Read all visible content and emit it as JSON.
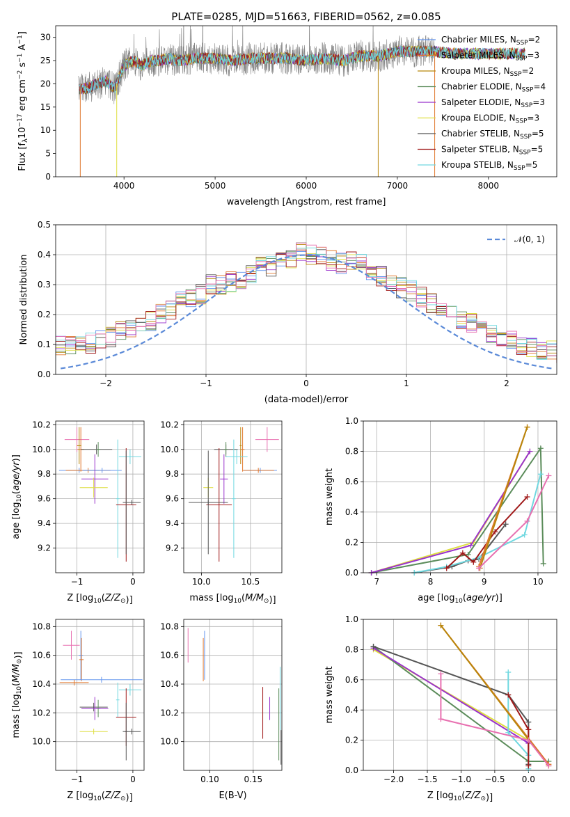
{
  "colors": {
    "chabrier_miles": "#6495ed",
    "salpeter_miles": "#e0782e",
    "kroupa_miles": "#b8860b",
    "chabrier_elodie": "#5b8c5a",
    "salpeter_elodie": "#9932cc",
    "kroupa_elodie": "#dede40",
    "chabrier_stelib": "#555555",
    "salpeter_stelib": "#a01818",
    "kroupa_stelib": "#70d8e0",
    "pink": "#e870b0",
    "gauss": "#5b8ad8",
    "data": "#808080",
    "grid": "#b0b0b0"
  },
  "chart_data": [
    {
      "type": "line",
      "title": "PLATE=0285, MJD=51663, FIBERID=0562, z=0.085",
      "xlabel": "wavelength [Angstrom, rest frame]",
      "ylabel": "Flux [f_λ10^-17 erg cm^-2 s^-1 A^-1]",
      "xlim": [
        3250,
        8750
      ],
      "ylim": [
        0,
        32.5
      ],
      "xticks": [
        "4000",
        "5000",
        "6000",
        "7000",
        "8000"
      ],
      "yticks": [
        "0",
        "5",
        "10",
        "15",
        "20",
        "25",
        "30"
      ],
      "grid": false,
      "legend_position": "right",
      "legend": [
        {
          "name": "Chabrier MILES, N_SSP=2",
          "color_key": "chabrier_miles"
        },
        {
          "name": "Salpeter MILES, N_SSP=3",
          "color_key": "salpeter_miles"
        },
        {
          "name": "Kroupa MILES, N_SSP=2",
          "color_key": "kroupa_miles"
        },
        {
          "name": "Chabrier ELODIE, N_SSP=4",
          "color_key": "chabrier_elodie"
        },
        {
          "name": "Salpeter ELODIE, N_SSP=3",
          "color_key": "salpeter_elodie"
        },
        {
          "name": "Kroupa ELODIE, N_SSP=3",
          "color_key": "kroupa_elodie"
        },
        {
          "name": "Chabrier STELIB, N_SSP=5",
          "color_key": "chabrier_stelib"
        },
        {
          "name": "Salpeter STELIB, N_SSP=5",
          "color_key": "salpeter_stelib"
        },
        {
          "name": "Kroupa STELIB, N_SSP=5",
          "color_key": "kroupa_stelib"
        }
      ],
      "continuum": {
        "x": [
          3500,
          3600,
          3700,
          3800,
          3900,
          4000,
          4100,
          4200,
          4300,
          4400,
          4500,
          4600,
          4800,
          5000,
          5200,
          5400,
          5600,
          5800,
          6000,
          6200,
          6400,
          6600,
          6800,
          7000,
          7200,
          7400,
          7600,
          7800,
          8000,
          8200,
          8400
        ],
        "y": [
          19,
          19,
          20,
          20.5,
          19,
          24,
          25,
          24,
          25,
          25,
          25.5,
          25,
          25.5,
          25.5,
          25,
          25.5,
          25.5,
          25.5,
          25,
          25.5,
          25,
          26,
          26,
          27,
          27,
          27,
          26.5,
          26.5,
          26.5,
          26.5,
          26.5
        ]
      }
    },
    {
      "type": "bar",
      "xlabel": "(data-model)/error",
      "ylabel": "Normed distribution",
      "xlim": [
        -2.5,
        2.5
      ],
      "ylim": [
        0,
        0.5
      ],
      "xticks": [
        "−2",
        "−1",
        "0",
        "1",
        "2"
      ],
      "yticks": [
        "0.0",
        "0.1",
        "0.2",
        "0.3",
        "0.4",
        "0.5"
      ],
      "grid": true,
      "legend_position": "top-right",
      "legend": [
        "𝒩(0, 1)"
      ],
      "bin_width": 0.1,
      "mean_histogram": [
        0.05,
        0.055,
        0.06,
        0.075,
        0.08,
        0.095,
        0.1,
        0.1,
        0.105,
        0.115,
        0.125,
        0.145,
        0.155,
        0.16,
        0.18,
        0.2,
        0.22,
        0.25,
        0.25,
        0.27,
        0.3,
        0.3,
        0.31,
        0.32,
        0.34,
        0.36,
        0.36,
        0.39,
        0.39,
        0.41,
        0.4,
        0.4,
        0.38,
        0.37,
        0.38,
        0.37,
        0.35,
        0.33,
        0.31,
        0.29,
        0.28,
        0.26,
        0.24,
        0.22,
        0.2,
        0.18,
        0.17,
        0.15,
        0.14,
        0.12,
        0.12,
        0.1,
        0.09,
        0.08,
        0.08,
        0.07,
        0.06,
        0.05,
        0.04,
        0.04
      ],
      "series_offsets": [
        {
          "name": "Chabrier MILES",
          "color_key": "chabrier_miles",
          "seed": 3
        },
        {
          "name": "Salpeter MILES",
          "color_key": "salpeter_miles",
          "seed": 7
        },
        {
          "name": "Kroupa MILES",
          "color_key": "kroupa_miles",
          "seed": 11
        },
        {
          "name": "Chabrier ELODIE",
          "color_key": "chabrier_elodie",
          "seed": 13
        },
        {
          "name": "Salpeter ELODIE",
          "color_key": "salpeter_elodie",
          "seed": 17
        },
        {
          "name": "Kroupa ELODIE",
          "color_key": "kroupa_elodie",
          "seed": 19
        },
        {
          "name": "Chabrier STELIB",
          "color_key": "chabrier_stelib",
          "seed": 23
        },
        {
          "name": "Salpeter STELIB",
          "color_key": "salpeter_stelib",
          "seed": 29
        },
        {
          "name": "Kroupa STELIB",
          "color_key": "kroupa_stelib",
          "seed": 31
        },
        {
          "name": "pink",
          "color_key": "pink",
          "seed": 37
        }
      ]
    },
    {
      "type": "scatter",
      "xlabel": "Z [log10(Z/Z⊙)]",
      "ylabel": "age [log10(age/yr)]",
      "xlim": [
        -1.38,
        0.2
      ],
      "ylim": [
        9.0,
        10.23
      ],
      "xticks": [
        "−1",
        "0"
      ],
      "yticks": [
        "9.2",
        "9.4",
        "9.6",
        "9.8",
        "10.0",
        "10.2"
      ],
      "grid": true,
      "points": [
        {
          "x": -1.0,
          "y": 10.08,
          "xe": 0.22,
          "ye": 0.1,
          "color_key": "pink"
        },
        {
          "x": -0.93,
          "y": 10.0,
          "xe": 0.06,
          "ye": 0.18,
          "color_key": "salpeter_miles"
        },
        {
          "x": -0.96,
          "y": 10.03,
          "xe": 0.04,
          "ye": 0.15,
          "color_key": "kroupa_miles"
        },
        {
          "x": -0.96,
          "y": 9.83,
          "xe": 0.36,
          "ye": 0.02,
          "color_key": "chabrier_miles"
        },
        {
          "x": -0.8,
          "y": 9.83,
          "xe": 0.4,
          "ye": 0.02,
          "color_key": "salpeter_miles"
        },
        {
          "x": -0.55,
          "y": 9.83,
          "xe": 0.35,
          "ye": 0.02,
          "color_key": "chabrier_miles"
        },
        {
          "x": -0.65,
          "y": 10.0,
          "xe": 0.28,
          "ye": 0.04,
          "color_key": "chabrier_stelib"
        },
        {
          "x": -0.62,
          "y": 10.0,
          "xe": 0.04,
          "ye": 0.06,
          "color_key": "chabrier_elodie"
        },
        {
          "x": -0.68,
          "y": 9.76,
          "xe": 0.24,
          "ye": 0.2,
          "color_key": "salpeter_elodie"
        },
        {
          "x": -0.7,
          "y": 9.69,
          "xe": 0.25,
          "ye": 0.08,
          "color_key": "kroupa_elodie"
        },
        {
          "x": -0.27,
          "y": 9.6,
          "xe": 0.03,
          "ye": 0.48,
          "color_key": "kroupa_stelib"
        },
        {
          "x": -0.05,
          "y": 9.94,
          "xe": 0.2,
          "ye": 0.06,
          "color_key": "kroupa_stelib"
        },
        {
          "x": -0.12,
          "y": 9.55,
          "xe": 0.18,
          "ye": 0.46,
          "color_key": "salpeter_stelib"
        },
        {
          "x": -0.02,
          "y": 9.57,
          "xe": 0.16,
          "ye": 0.02,
          "color_key": "chabrier_stelib"
        },
        {
          "x": -0.12,
          "y": 9.57,
          "xe": 0.05,
          "ye": 0.42,
          "color_key": "chabrier_stelib"
        }
      ]
    },
    {
      "type": "scatter",
      "xlabel": "mass [log10(M/M⊙)]",
      "ylabel": "",
      "xlim": [
        9.82,
        10.82
      ],
      "ylim": [
        9.0,
        10.23
      ],
      "xticks": [
        "10.0",
        "10.5"
      ],
      "yticks": [
        "9.2",
        "9.4",
        "9.6",
        "9.8",
        "10.0",
        "10.2"
      ],
      "grid": true,
      "points": [
        {
          "x": 10.67,
          "y": 10.08,
          "xe": 0.12,
          "ye": 0.1,
          "color_key": "pink"
        },
        {
          "x": 10.42,
          "y": 10.0,
          "xe": 0.02,
          "ye": 0.18,
          "color_key": "salpeter_miles"
        },
        {
          "x": 10.4,
          "y": 10.03,
          "xe": 0.01,
          "ye": 0.15,
          "color_key": "kroupa_miles"
        },
        {
          "x": 10.6,
          "y": 9.83,
          "xe": 0.17,
          "ye": 0.02,
          "color_key": "chabrier_miles"
        },
        {
          "x": 10.58,
          "y": 9.83,
          "xe": 0.16,
          "ye": 0.02,
          "color_key": "salpeter_miles"
        },
        {
          "x": 10.25,
          "y": 10.0,
          "xe": 0.12,
          "ye": 0.04,
          "color_key": "chabrier_stelib"
        },
        {
          "x": 10.25,
          "y": 10.0,
          "xe": 0.02,
          "ye": 0.06,
          "color_key": "chabrier_elodie"
        },
        {
          "x": 10.23,
          "y": 9.76,
          "xe": 0.04,
          "ye": 0.2,
          "color_key": "salpeter_elodie"
        },
        {
          "x": 10.07,
          "y": 9.69,
          "xe": 0.05,
          "ye": 0.08,
          "color_key": "kroupa_elodie"
        },
        {
          "x": 10.36,
          "y": 9.94,
          "xe": 0.11,
          "ye": 0.06,
          "color_key": "kroupa_stelib"
        },
        {
          "x": 10.33,
          "y": 9.6,
          "xe": 0.02,
          "ye": 0.48,
          "color_key": "kroupa_stelib"
        },
        {
          "x": 10.18,
          "y": 9.55,
          "xe": 0.13,
          "ye": 0.46,
          "color_key": "salpeter_stelib"
        },
        {
          "x": 10.07,
          "y": 9.57,
          "xe": 0.2,
          "ye": 0.02,
          "color_key": "chabrier_stelib"
        },
        {
          "x": 10.07,
          "y": 9.57,
          "xe": 0.02,
          "ye": 0.42,
          "color_key": "chabrier_stelib"
        }
      ]
    },
    {
      "type": "line",
      "xlabel": "age [log10(age/yr)]",
      "ylabel": "mass weight",
      "xlim": [
        6.75,
        10.35
      ],
      "ylim": [
        0,
        1
      ],
      "xticks": [
        "7",
        "8",
        "9",
        "10"
      ],
      "yticks": [
        "0.0",
        "0.2",
        "0.4",
        "0.6",
        "0.8",
        "1.0"
      ],
      "grid": true,
      "series": [
        {
          "color_key": "kroupa_elodie",
          "x": [
            6.9,
            8.8,
            9.85
          ],
          "y": [
            0.0,
            0.2,
            0.8
          ]
        },
        {
          "color_key": "chabrier_elodie",
          "x": [
            6.9,
            8.7,
            10.05,
            10.1
          ],
          "y": [
            0.0,
            0.12,
            0.82,
            0.06
          ]
        },
        {
          "color_key": "salpeter_elodie",
          "x": [
            6.9,
            8.75,
            9.85
          ],
          "y": [
            0.0,
            0.18,
            0.8
          ]
        },
        {
          "color_key": "chabrier_stelib",
          "x": [
            7.7,
            8.4,
            8.7,
            8.9,
            9.4
          ],
          "y": [
            0.0,
            0.04,
            0.08,
            0.09,
            0.32
          ]
        },
        {
          "color_key": "kroupa_stelib",
          "x": [
            7.7,
            8.3,
            8.9,
            9.75,
            10.05
          ],
          "y": [
            0.0,
            0.04,
            0.1,
            0.25,
            0.65
          ]
        },
        {
          "color_key": "salpeter_stelib",
          "x": [
            8.3,
            8.6,
            8.8,
            9.2,
            9.8
          ],
          "y": [
            0.03,
            0.13,
            0.07,
            0.27,
            0.5
          ]
        },
        {
          "color_key": "salpeter_miles",
          "x": [
            8.9,
            9.8
          ],
          "y": [
            0.04,
            0.96
          ]
        },
        {
          "color_key": "kroupa_miles",
          "x": [
            8.92,
            9.8
          ],
          "y": [
            0.03,
            0.96
          ]
        },
        {
          "color_key": "pink",
          "x": [
            8.9,
            9.8,
            10.2
          ],
          "y": [
            0.03,
            0.34,
            0.64
          ]
        }
      ]
    },
    {
      "type": "scatter",
      "xlabel": "Z [log10(Z/Z⊙)]",
      "ylabel": "mass [log10(M/M⊙)]",
      "xlim": [
        -1.38,
        0.2
      ],
      "ylim": [
        9.8,
        10.85
      ],
      "xticks": [
        "−1",
        "0"
      ],
      "yticks": [
        "10.0",
        "10.2",
        "10.4",
        "10.6",
        "10.8"
      ],
      "grid": true,
      "points": [
        {
          "x": -1.1,
          "y": 10.67,
          "xe": 0.15,
          "ye": 0.1,
          "color_key": "pink"
        },
        {
          "x": -0.93,
          "y": 10.6,
          "xe": 0.04,
          "ye": 0.17,
          "color_key": "chabrier_miles"
        },
        {
          "x": -0.92,
          "y": 10.57,
          "xe": 0.04,
          "ye": 0.15,
          "color_key": "salpeter_miles"
        },
        {
          "x": -0.56,
          "y": 10.43,
          "xe": 0.73,
          "ye": 0.02,
          "color_key": "chabrier_miles"
        },
        {
          "x": -1.05,
          "y": 10.41,
          "xe": 0.26,
          "ye": 0.02,
          "color_key": "salpeter_miles"
        },
        {
          "x": -0.7,
          "y": 10.24,
          "xe": 0.25,
          "ye": 0.03,
          "color_key": "chabrier_stelib"
        },
        {
          "x": -0.62,
          "y": 10.23,
          "xe": 0.04,
          "ye": 0.06,
          "color_key": "chabrier_elodie"
        },
        {
          "x": -0.68,
          "y": 10.23,
          "xe": 0.24,
          "ye": 0.08,
          "color_key": "salpeter_elodie"
        },
        {
          "x": -0.7,
          "y": 10.07,
          "xe": 0.25,
          "ye": 0.02,
          "color_key": "kroupa_elodie"
        },
        {
          "x": -0.27,
          "y": 10.29,
          "xe": 0.03,
          "ye": 0.12,
          "color_key": "kroupa_stelib"
        },
        {
          "x": -0.05,
          "y": 10.36,
          "xe": 0.2,
          "ye": 0.04,
          "color_key": "kroupa_stelib"
        },
        {
          "x": -0.12,
          "y": 10.17,
          "xe": 0.18,
          "ye": 0.2,
          "color_key": "salpeter_stelib"
        },
        {
          "x": -0.02,
          "y": 10.07,
          "xe": 0.16,
          "ye": 0.02,
          "color_key": "chabrier_stelib"
        },
        {
          "x": -0.12,
          "y": 10.07,
          "xe": 0.02,
          "ye": 0.2,
          "color_key": "chabrier_stelib"
        }
      ]
    },
    {
      "type": "scatter",
      "xlabel": "E(B-V)",
      "ylabel": "",
      "xlim": [
        0.07,
        0.183
      ],
      "ylim": [
        9.8,
        10.85
      ],
      "xticks": [
        "0.10",
        "0.15"
      ],
      "yticks": [
        "10.0",
        "10.2",
        "10.4",
        "10.6",
        "10.8"
      ],
      "grid": true,
      "points": [
        {
          "x": 0.075,
          "y": 10.67,
          "xe": 0,
          "ye": 0.12,
          "color_key": "pink"
        },
        {
          "x": 0.094,
          "y": 10.6,
          "xe": 0,
          "ye": 0.17,
          "color_key": "chabrier_miles"
        },
        {
          "x": 0.0925,
          "y": 10.57,
          "xe": 0,
          "ye": 0.15,
          "color_key": "salpeter_miles"
        },
        {
          "x": 0.161,
          "y": 10.2,
          "xe": 0,
          "ye": 0.18,
          "color_key": "salpeter_stelib"
        },
        {
          "x": 0.169,
          "y": 10.23,
          "xe": 0,
          "ye": 0.08,
          "color_key": "salpeter_elodie"
        },
        {
          "x": 0.1795,
          "y": 10.12,
          "xe": 0,
          "ye": 0.25,
          "color_key": "chabrier_elodie"
        },
        {
          "x": 0.181,
          "y": 10.3,
          "xe": 0,
          "ye": 0.22,
          "color_key": "kroupa_stelib"
        },
        {
          "x": 0.182,
          "y": 9.96,
          "xe": 0,
          "ye": 0.12,
          "color_key": "chabrier_stelib"
        }
      ]
    },
    {
      "type": "line",
      "xlabel": "Z [log10(Z/Z⊙)]",
      "ylabel": "mass weight",
      "xlim": [
        -2.45,
        0.42
      ],
      "ylim": [
        0,
        1
      ],
      "xticks": [
        "−2.0",
        "−1.5",
        "−1.0",
        "−0.5",
        "0.0"
      ],
      "yticks": [
        "0.0",
        "0.2",
        "0.4",
        "0.6",
        "0.8",
        "1.0"
      ],
      "grid": true,
      "series": [
        {
          "color_key": "kroupa_elodie",
          "x": [
            -2.3,
            0.0
          ],
          "y": [
            0.8,
            0.2
          ]
        },
        {
          "color_key": "chabrier_elodie",
          "x": [
            -2.3,
            0.0,
            0.3
          ],
          "y": [
            0.82,
            0.06,
            0.06
          ]
        },
        {
          "color_key": "salpeter_elodie",
          "x": [
            -2.3,
            0.0
          ],
          "y": [
            0.81,
            0.18
          ]
        },
        {
          "color_key": "chabrier_stelib",
          "x": [
            -2.3,
            -0.3,
            0.0,
            0.0
          ],
          "y": [
            0.82,
            0.5,
            0.32,
            0.04
          ]
        },
        {
          "color_key": "kroupa_stelib",
          "x": [
            -0.3,
            -0.3,
            0.0,
            0.0
          ],
          "y": [
            0.65,
            0.25,
            0.1,
            0.01
          ]
        },
        {
          "color_key": "salpeter_stelib",
          "x": [
            -0.3,
            0.0,
            0.0
          ],
          "y": [
            0.5,
            0.27,
            0.03
          ]
        },
        {
          "color_key": "salpeter_miles",
          "x": [
            -1.3,
            0.3
          ],
          "y": [
            0.96,
            0.04
          ]
        },
        {
          "color_key": "kroupa_miles",
          "x": [
            -1.3,
            0.3
          ],
          "y": [
            0.96,
            0.03
          ]
        },
        {
          "color_key": "pink",
          "x": [
            -1.3,
            -1.3,
            0.0,
            0.3
          ],
          "y": [
            0.64,
            0.34,
            0.2,
            0.03
          ]
        }
      ]
    }
  ]
}
